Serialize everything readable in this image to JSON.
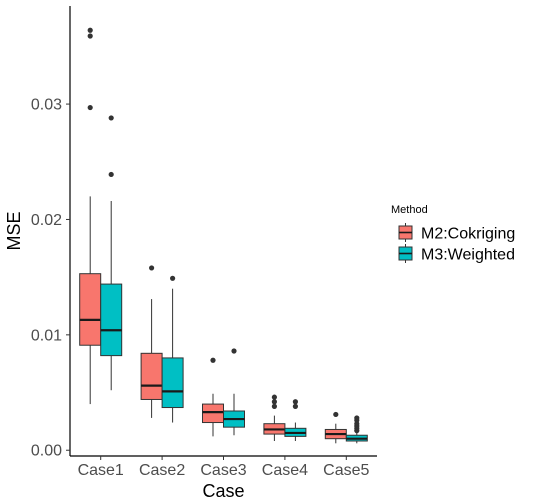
{
  "chart_data": {
    "type": "boxplot",
    "title": "",
    "xlabel": "Case",
    "ylabel": "MSE",
    "categories": [
      "Case1",
      "Case2",
      "Case3",
      "Case4",
      "Case5"
    ],
    "ylim": [
      -0.0005,
      0.0385
    ],
    "yticks": [
      0.0,
      0.01,
      0.02,
      0.03
    ],
    "ytick_labels": [
      "0.00",
      "0.01",
      "0.02",
      "0.03"
    ],
    "grid": false,
    "legend": {
      "title": "Method",
      "position": "right"
    },
    "series": [
      {
        "name": "M2:Cokriging",
        "color": "#F8766D",
        "boxes": [
          {
            "whisker_low": 0.004,
            "q1": 0.0091,
            "median": 0.0113,
            "q3": 0.0153,
            "whisker_high": 0.022,
            "outliers": [
              0.0297,
              0.0359,
              0.0364
            ]
          },
          {
            "whisker_low": 0.0028,
            "q1": 0.0044,
            "median": 0.0056,
            "q3": 0.0084,
            "whisker_high": 0.0131,
            "outliers": [
              0.0158
            ]
          },
          {
            "whisker_low": 0.0012,
            "q1": 0.0024,
            "median": 0.0033,
            "q3": 0.004,
            "whisker_high": 0.0049,
            "outliers": [
              0.0078
            ]
          },
          {
            "whisker_low": 0.0008,
            "q1": 0.0014,
            "median": 0.0018,
            "q3": 0.0023,
            "whisker_high": 0.003,
            "outliers": [
              0.0038,
              0.0042,
              0.0046
            ]
          },
          {
            "whisker_low": 0.0006,
            "q1": 0.001,
            "median": 0.0014,
            "q3": 0.0018,
            "whisker_high": 0.0023,
            "outliers": [
              0.0031
            ]
          }
        ]
      },
      {
        "name": "M3:Weighted",
        "color": "#00BFC4",
        "boxes": [
          {
            "whisker_low": 0.0052,
            "q1": 0.0082,
            "median": 0.0104,
            "q3": 0.0144,
            "whisker_high": 0.0216,
            "outliers": [
              0.0239,
              0.0288
            ]
          },
          {
            "whisker_low": 0.0024,
            "q1": 0.0037,
            "median": 0.0051,
            "q3": 0.008,
            "whisker_high": 0.014,
            "outliers": [
              0.0149
            ]
          },
          {
            "whisker_low": 0.0013,
            "q1": 0.002,
            "median": 0.0027,
            "q3": 0.0034,
            "whisker_high": 0.0049,
            "outliers": [
              0.0086
            ]
          },
          {
            "whisker_low": 0.0008,
            "q1": 0.0012,
            "median": 0.0015,
            "q3": 0.0019,
            "whisker_high": 0.0024,
            "outliers": [
              0.0038,
              0.0042
            ]
          },
          {
            "whisker_low": 0.0006,
            "q1": 0.0008,
            "median": 0.001,
            "q3": 0.0013,
            "whisker_high": 0.0015,
            "outliers": [
              0.0017,
              0.0019,
              0.0021,
              0.0023,
              0.0026,
              0.0028
            ]
          }
        ]
      }
    ]
  }
}
